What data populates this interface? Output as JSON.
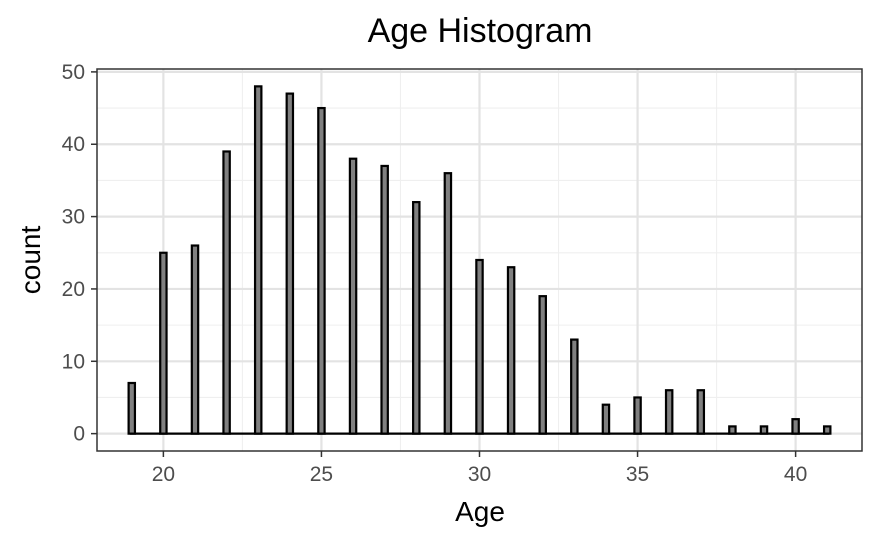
{
  "chart_data": {
    "type": "bar",
    "title": "Age Histogram",
    "xlabel": "Age",
    "ylabel": "count",
    "x": [
      19,
      20,
      21,
      22,
      23,
      24,
      25,
      26,
      27,
      28,
      29,
      30,
      31,
      32,
      33,
      34,
      35,
      36,
      37,
      38,
      39,
      40,
      41
    ],
    "values": [
      7,
      25,
      26,
      39,
      48,
      47,
      45,
      38,
      37,
      32,
      36,
      24,
      23,
      19,
      13,
      4,
      5,
      6,
      6,
      1,
      1,
      2,
      1
    ],
    "xlim": [
      17.9,
      42.1
    ],
    "ylim": [
      -2.4,
      50.4
    ],
    "xticks": [
      20,
      25,
      30,
      35,
      40
    ],
    "yticks": [
      0,
      10,
      20,
      30,
      40,
      50
    ],
    "bar_width": 0.2,
    "grid": true,
    "colors": {
      "fill": "#808080",
      "outline": "#000000"
    }
  }
}
